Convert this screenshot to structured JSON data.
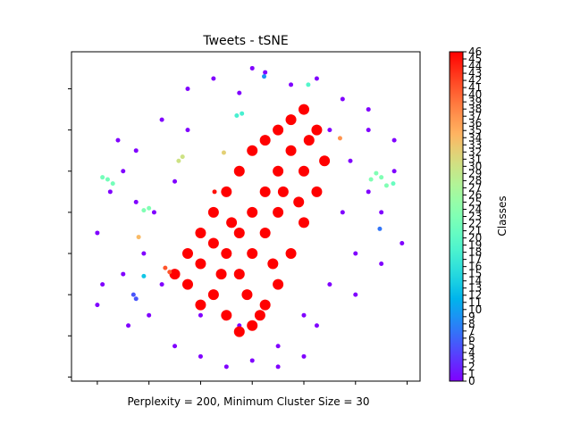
{
  "chart_data": {
    "type": "scatter",
    "title": "Tweets - tSNE",
    "xlabel": "Perplexity = 200, Minimum Cluster Size = 30",
    "colorbar_label": "Classes",
    "clim": [
      0,
      46
    ],
    "colorbar_ticks": [
      0,
      1,
      2,
      3,
      4,
      5,
      6,
      7,
      8,
      9,
      10,
      11,
      12,
      13,
      14,
      15,
      16,
      17,
      18,
      19,
      20,
      21,
      22,
      23,
      24,
      25,
      26,
      27,
      28,
      29,
      30,
      31,
      32,
      33,
      34,
      35,
      36,
      37,
      38,
      39,
      40,
      41,
      42,
      43,
      44,
      45,
      46
    ],
    "xlim": [
      -70,
      65
    ],
    "ylim": [
      -62,
      98
    ],
    "xticks": [
      -60,
      -40,
      -20,
      0,
      20,
      40,
      60
    ],
    "yticks": [
      -60,
      -40,
      -20,
      0,
      20,
      40,
      60,
      80
    ],
    "x": [
      -60,
      -55,
      -50,
      -45,
      -40,
      -35,
      -30,
      -25,
      -20,
      -15,
      -10,
      -5,
      0,
      5,
      10,
      15,
      20,
      25,
      30,
      35,
      40,
      45,
      50,
      55,
      58,
      -58,
      -52,
      -48,
      40,
      45,
      -38,
      -42,
      35,
      38,
      -25,
      -20,
      20,
      30,
      50,
      -50,
      10,
      -5,
      25,
      -30,
      45,
      -45,
      55,
      -35,
      0,
      -60,
      -30,
      -25,
      -20,
      -15,
      -10,
      -5,
      0,
      5,
      10,
      15,
      20,
      25,
      28,
      25,
      20,
      15,
      10,
      5,
      0,
      -5,
      -10,
      -15,
      -20,
      -25,
      -10,
      -5,
      0,
      5,
      10,
      15,
      0,
      5,
      -5,
      10,
      -15,
      20,
      -2,
      8,
      12,
      -20,
      22,
      18,
      -8,
      3,
      -12,
      -56,
      -54,
      -58,
      -42,
      -40,
      48,
      50,
      46,
      52,
      -28.5,
      -27,
      34,
      -6,
      -4,
      4.6,
      -46,
      -45,
      -33.7,
      -32,
      -44,
      54.6,
      49.4,
      -42,
      21.7,
      -14.6,
      -11
    ],
    "y": [
      10,
      30,
      -10,
      50,
      -30,
      65,
      -45,
      80,
      -50,
      85,
      -55,
      78,
      -52,
      88,
      -45,
      82,
      -30,
      85,
      -15,
      75,
      0,
      60,
      20,
      40,
      5,
      -15,
      55,
      -35,
      -20,
      30,
      20,
      0,
      20,
      45,
      60,
      -30,
      -50,
      60,
      -5,
      40,
      -55,
      -35,
      -35,
      35,
      70,
      25,
      55,
      -15,
      90,
      -25,
      -10,
      0,
      10,
      20,
      30,
      40,
      50,
      55,
      60,
      65,
      70,
      60,
      45,
      30,
      15,
      0,
      -15,
      -25,
      -35,
      -38,
      -30,
      -20,
      -25,
      -15,
      0,
      10,
      20,
      30,
      40,
      50,
      0,
      10,
      -10,
      20,
      5,
      40,
      -20,
      -5,
      30,
      -5,
      55,
      25,
      15,
      -30,
      -10,
      36,
      34,
      37,
      21,
      22,
      39,
      37,
      36,
      33,
      45,
      47,
      56,
      67,
      68,
      86,
      -20,
      -22,
      -7,
      -9,
      8,
      34,
      12,
      -11,
      82,
      30,
      49
    ],
    "values": [
      0,
      0,
      0,
      0,
      0,
      0,
      0,
      0,
      0,
      0,
      0,
      0,
      0,
      0,
      0,
      0,
      0,
      0,
      0,
      0,
      0,
      0,
      0,
      0,
      0,
      0,
      0,
      0,
      0,
      0,
      0,
      0,
      0,
      0,
      0,
      0,
      0,
      0,
      0,
      0,
      0,
      0,
      0,
      0,
      0,
      0,
      0,
      0,
      0,
      0,
      46,
      46,
      46,
      46,
      46,
      46,
      46,
      46,
      46,
      46,
      46,
      46,
      46,
      46,
      46,
      46,
      46,
      46,
      46,
      46,
      46,
      46,
      46,
      46,
      46,
      46,
      46,
      46,
      46,
      46,
      46,
      46,
      46,
      46,
      46,
      46,
      46,
      46,
      46,
      46,
      46,
      46,
      46,
      46,
      46,
      22,
      22,
      22,
      23,
      23,
      23,
      23,
      23,
      23,
      30,
      30,
      37,
      18,
      18,
      9,
      5,
      5,
      41,
      41,
      34,
      21,
      7,
      13,
      19,
      45,
      32
    ]
  }
}
